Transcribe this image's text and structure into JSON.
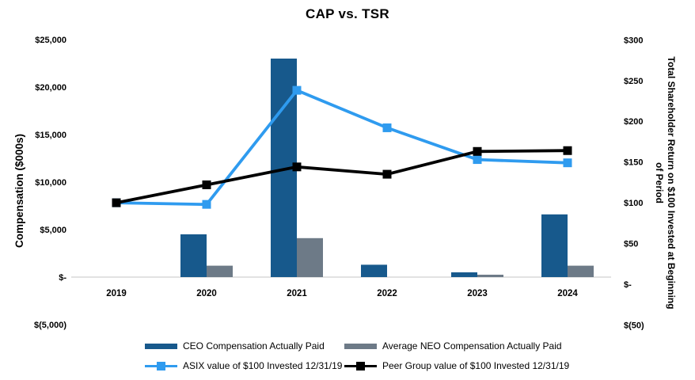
{
  "window": {
    "background": "#ffffff"
  },
  "chart_data": {
    "type": "combo (bar + line)",
    "title": "CAP vs. TSR",
    "categories": [
      "2019",
      "2020",
      "2021",
      "2022",
      "2023",
      "2024"
    ],
    "bar_series": [
      {
        "name": "CEO Compensation Actually Paid",
        "axis": "left",
        "color": "#17598C",
        "values": [
          null,
          4500,
          23000,
          1300,
          500,
          6600
        ]
      },
      {
        "name": "Average NEO Compensation Actually Paid",
        "axis": "left",
        "color": "#6D7A87",
        "values": [
          null,
          1200,
          4100,
          null,
          250,
          1200
        ]
      }
    ],
    "line_series": [
      {
        "name": "ASIX value of $100 Invested 12/31/19",
        "axis": "right",
        "color": "#2F9BEF",
        "marker": "square",
        "values": [
          100,
          98,
          238,
          192,
          153,
          149
        ]
      },
      {
        "name": "Peer Group value of $100 Invested 12/31/19",
        "axis": "right",
        "color": "#000000",
        "marker": "square",
        "values": [
          100,
          122,
          144,
          135,
          163,
          164
        ]
      }
    ],
    "left_axis": {
      "title": "Compensation ($000s)",
      "range": [
        -5000,
        25000
      ],
      "ticks": [
        {
          "label": "$25,000",
          "value": 25000
        },
        {
          "label": "$20,000",
          "value": 20000
        },
        {
          "label": "$15,000",
          "value": 15000
        },
        {
          "label": "$10,000",
          "value": 10000
        },
        {
          "label": "$5,000",
          "value": 5000
        },
        {
          "label": "$-",
          "value": 0
        },
        {
          "label": "$(5,000)",
          "value": -5000
        }
      ]
    },
    "right_axis": {
      "title": "Total Shareholder Return on $100 Invested at Beginning of Period",
      "title_lines": [
        "Total Shareholder Return on $100 Invested at Beginning",
        "of Period"
      ],
      "range": [
        -50,
        300
      ],
      "ticks": [
        {
          "label": "$300",
          "value": 300
        },
        {
          "label": "$250",
          "value": 250
        },
        {
          "label": "$200",
          "value": 200
        },
        {
          "label": "$150",
          "value": 150
        },
        {
          "label": "$100",
          "value": 100
        },
        {
          "label": "$50",
          "value": 50
        },
        {
          "label": "$-",
          "value": 0
        },
        {
          "label": "$(50)",
          "value": -50
        }
      ]
    },
    "legend_position": "bottom",
    "grid": "baseline only",
    "baseline_color": "#D9D9D9"
  }
}
